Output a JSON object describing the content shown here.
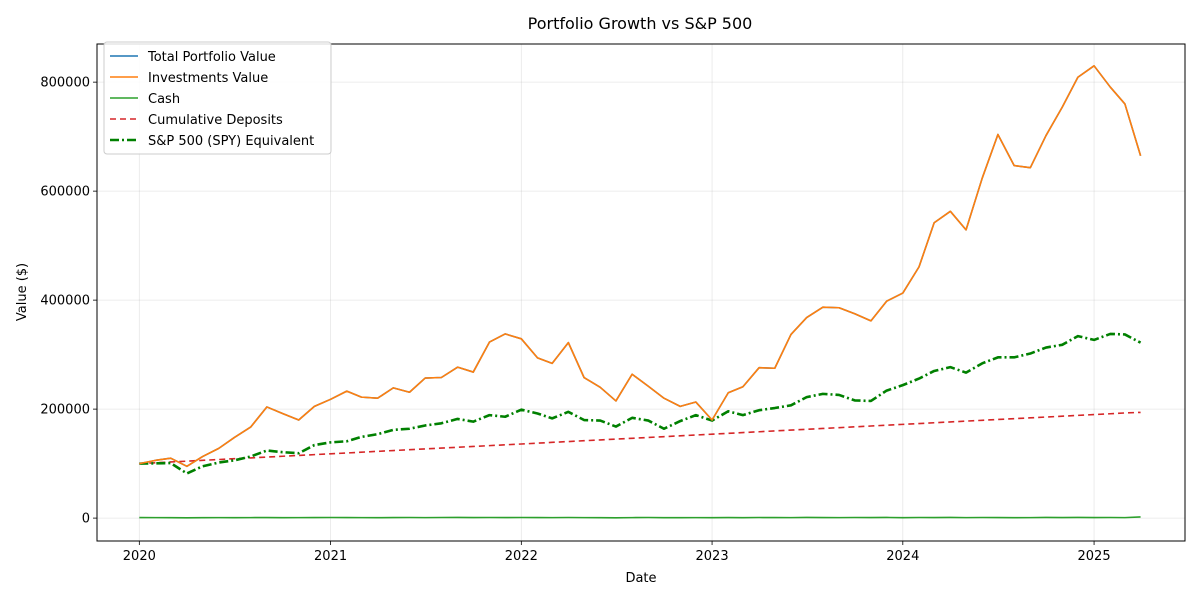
{
  "chart_data": {
    "type": "line",
    "title": "Portfolio Growth vs S&P 500",
    "xlabel": "Date",
    "ylabel": "Value ($)",
    "xlim": [
      "2019-10-12",
      "2025-06-24"
    ],
    "ylim": [
      -42000,
      870000
    ],
    "x_ticks": [
      "2020",
      "2021",
      "2022",
      "2023",
      "2024",
      "2025"
    ],
    "y_ticks": [
      0,
      200000,
      400000,
      600000,
      800000
    ],
    "y_tick_labels": [
      "0",
      "200000",
      "400000",
      "600000",
      "800000"
    ],
    "grid": true,
    "legend_position": "top-left",
    "x": [
      "2020-01-01",
      "2020-02-01",
      "2020-03-01",
      "2020-04-01",
      "2020-05-01",
      "2020-06-01",
      "2020-07-01",
      "2020-08-01",
      "2020-09-01",
      "2020-10-01",
      "2020-11-01",
      "2020-12-01",
      "2021-01-01",
      "2021-02-01",
      "2021-03-01",
      "2021-04-01",
      "2021-05-01",
      "2021-06-01",
      "2021-07-01",
      "2021-08-01",
      "2021-09-01",
      "2021-10-01",
      "2021-11-01",
      "2021-12-01",
      "2022-01-01",
      "2022-02-01",
      "2022-03-01",
      "2022-04-01",
      "2022-05-01",
      "2022-06-01",
      "2022-07-01",
      "2022-08-01",
      "2022-09-01",
      "2022-10-01",
      "2022-11-01",
      "2022-12-01",
      "2023-01-01",
      "2023-02-01",
      "2023-03-01",
      "2023-04-01",
      "2023-05-01",
      "2023-06-01",
      "2023-07-01",
      "2023-08-01",
      "2023-09-01",
      "2023-10-01",
      "2023-11-01",
      "2023-12-01",
      "2024-01-01",
      "2024-02-01",
      "2024-03-01",
      "2024-04-01",
      "2024-05-01",
      "2024-06-01",
      "2024-07-01",
      "2024-08-01",
      "2024-09-01",
      "2024-10-01",
      "2024-11-01",
      "2024-12-01",
      "2025-01-01",
      "2025-02-01",
      "2025-03-01",
      "2025-03-31"
    ],
    "series": [
      {
        "name": "Total Portfolio Value",
        "color": "#1f77b4",
        "style": "solid",
        "values": [
          100000,
          106000,
          110000,
          95000,
          113000,
          128000,
          148000,
          167000,
          204000,
          192000,
          180000,
          205000,
          218000,
          233000,
          222000,
          220000,
          239000,
          231000,
          257000,
          258000,
          277000,
          268000,
          323000,
          338000,
          329000,
          294000,
          284000,
          322000,
          258000,
          240000,
          215000,
          264000,
          242000,
          220000,
          205000,
          213000,
          180000,
          230000,
          241000,
          276000,
          275000,
          337000,
          368000,
          387000,
          386000,
          375000,
          362000,
          398000,
          413000,
          461000,
          542000,
          563000,
          529000,
          624000,
          704000,
          647000,
          643000,
          702000,
          754000,
          809000,
          830000,
          791000,
          760000,
          665000
        ]
      },
      {
        "name": "Investments Value",
        "color": "#ff7f0e",
        "style": "solid",
        "values": [
          100000,
          106000,
          110000,
          95000,
          113000,
          128000,
          148000,
          167000,
          204000,
          192000,
          180000,
          205000,
          218000,
          233000,
          222000,
          220000,
          239000,
          231000,
          257000,
          258000,
          277000,
          268000,
          323000,
          338000,
          329000,
          294000,
          284000,
          322000,
          258000,
          240000,
          215000,
          264000,
          242000,
          220000,
          205000,
          213000,
          180000,
          230000,
          241000,
          276000,
          275000,
          337000,
          368000,
          387000,
          386000,
          375000,
          362000,
          398000,
          413000,
          461000,
          542000,
          563000,
          529000,
          624000,
          704000,
          647000,
          643000,
          702000,
          754000,
          809000,
          830000,
          791000,
          760000,
          665000
        ]
      },
      {
        "name": "Cash",
        "color": "#2ca02c",
        "style": "solid",
        "values": [
          1000,
          900,
          800,
          600,
          800,
          900,
          700,
          900,
          1000,
          800,
          900,
          1000,
          1100,
          1000,
          900,
          800,
          1000,
          1100,
          900,
          1100,
          1200,
          1000,
          1100,
          1000,
          1100,
          1000,
          900,
          1100,
          900,
          700,
          600,
          900,
          1100,
          700,
          800,
          900,
          800,
          1000,
          700,
          1100,
          1000,
          900,
          1200,
          1000,
          900,
          1100,
          1000,
          1200,
          800,
          1100,
          1000,
          1200,
          900,
          1100,
          1000,
          800,
          900,
          1200,
          1000,
          1300,
          1000,
          1100,
          900,
          2200
        ]
      },
      {
        "name": "Cumulative Deposits",
        "color": "#d62728",
        "style": "dashed",
        "values": [
          100000,
          101500,
          103000,
          104500,
          106000,
          107500,
          109000,
          110500,
          112000,
          113500,
          115000,
          116500,
          118000,
          119500,
          121000,
          122500,
          124000,
          125500,
          127000,
          128500,
          130000,
          131500,
          133000,
          134500,
          136000,
          137500,
          139000,
          140500,
          142000,
          143500,
          145000,
          146500,
          148000,
          149500,
          151000,
          152500,
          154000,
          155500,
          157000,
          158500,
          160000,
          161500,
          163000,
          164500,
          166000,
          167500,
          169000,
          170500,
          172000,
          173500,
          175000,
          176500,
          178000,
          179500,
          181000,
          182500,
          184000,
          185500,
          187000,
          188500,
          190000,
          191500,
          193000,
          194000
        ]
      },
      {
        "name": "S&P 500 (SPY) Equivalent",
        "color": "#008000",
        "style": "dashdot",
        "values": [
          100000,
          100500,
          101000,
          82000,
          95000,
          102000,
          106000,
          113000,
          124000,
          121000,
          119000,
          134000,
          139000,
          141000,
          149000,
          154000,
          162000,
          164000,
          170000,
          174000,
          182000,
          177000,
          189000,
          186000,
          199000,
          192000,
          183000,
          195000,
          180000,
          179000,
          168000,
          184000,
          179000,
          164000,
          178000,
          189000,
          179000,
          196000,
          189000,
          198000,
          202000,
          207000,
          222000,
          228000,
          226000,
          216000,
          215000,
          234000,
          244000,
          256000,
          270000,
          277000,
          267000,
          284000,
          295000,
          295000,
          302000,
          313000,
          318000,
          334000,
          327000,
          338000,
          337000,
          322000
        ]
      }
    ]
  }
}
